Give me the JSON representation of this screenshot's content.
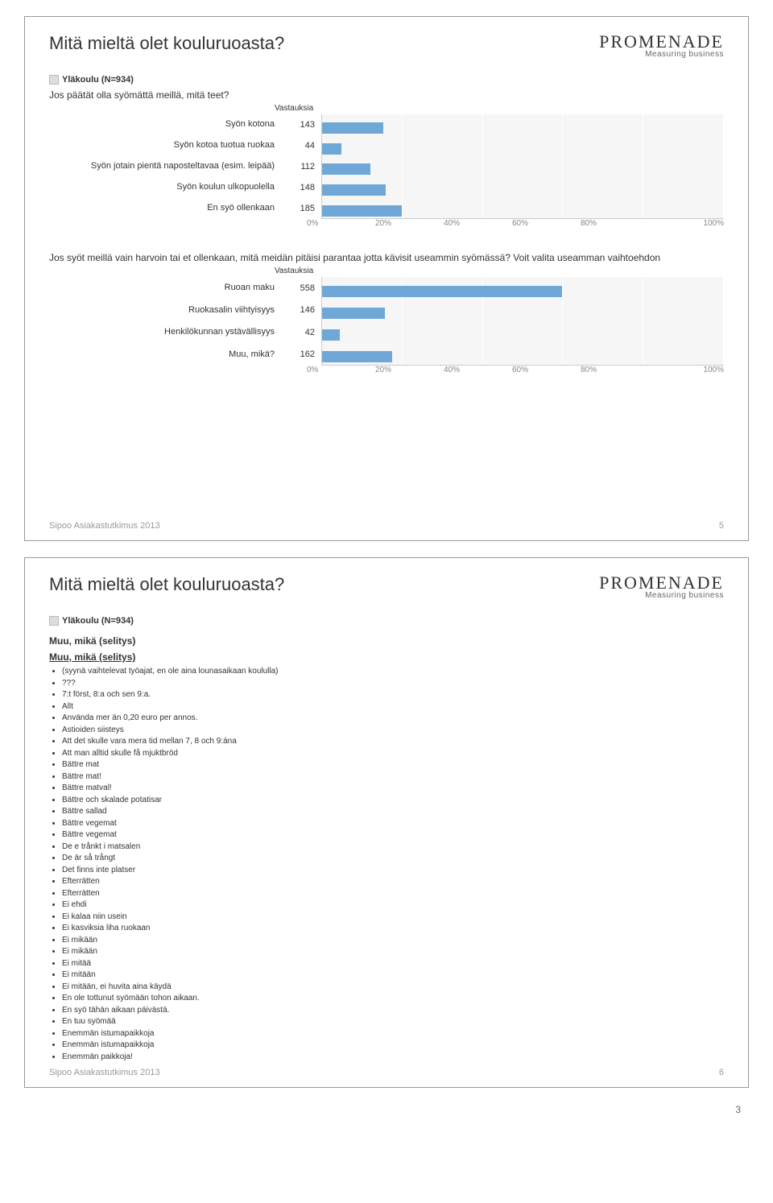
{
  "brand": {
    "name": "PROMENADE",
    "tagline": "Measuring business"
  },
  "filter": "Yläkoulu (N=934)",
  "footer": {
    "text": "Sipoo Asiakastutkimus 2013"
  },
  "pageNumber": "3",
  "slide1": {
    "title": "Mitä mieltä olet kouluruoasta?",
    "chart1": {
      "question": "Jos päätät olla syömättä meillä, mitä teet?",
      "countHeader": "Vastauksia",
      "total": 934,
      "bar_color": "#6fa8d6",
      "plot_bg": "#f6f6f6",
      "grid_color": "#ffffff",
      "axis_color": "#cccccc",
      "label_color": "#333333",
      "tick_label_color": "#888888",
      "ticks": [
        "0%",
        "20%",
        "40%",
        "60%",
        "80%",
        "100%"
      ],
      "rows": [
        {
          "label": "Syön kotona",
          "count": 143
        },
        {
          "label": "Syön kotoa tuotua ruokaa",
          "count": 44
        },
        {
          "label": "Syön jotain pientä naposteltavaa (esim. leipää)",
          "count": 112
        },
        {
          "label": "Syön koulun ulkopuolella",
          "count": 148
        },
        {
          "label": "En syö ollenkaan",
          "count": 185
        }
      ]
    },
    "chart2": {
      "question": "Jos syöt meillä vain harvoin tai et ollenkaan, mitä meidän pitäisi parantaa jotta kävisit useammin syömässä? Voit valita useamman vaihtoehdon",
      "countHeader": "Vastauksia",
      "total": 934,
      "bar_color": "#6fa8d6",
      "plot_bg": "#f6f6f6",
      "grid_color": "#ffffff",
      "axis_color": "#cccccc",
      "label_color": "#333333",
      "tick_label_color": "#888888",
      "ticks": [
        "0%",
        "20%",
        "40%",
        "60%",
        "80%",
        "100%"
      ],
      "rows": [
        {
          "label": "Ruoan maku",
          "count": 558
        },
        {
          "label": "Ruokasalin viihtyisyys",
          "count": 146
        },
        {
          "label": "Henkilökunnan ystävällisyys",
          "count": 42
        },
        {
          "label": "Muu, mikä?",
          "count": 162
        }
      ]
    },
    "pageNum": "5"
  },
  "slide2": {
    "title": "Mitä mieltä olet kouluruoasta?",
    "listTitle1": "Muu, mikä (selitys)",
    "listTitle2": "Muu, mikä (selitys)",
    "items": [
      "(syynä vaihtelevat työajat, en ole aina lounasaikaan koululla)",
      "???",
      "7:t först, 8:a och sen 9:a.",
      "Allt",
      "Använda mer än 0,20 euro per annos.",
      "Astioiden siisteys",
      "Att det skulle vara mera tid mellan 7, 8 och 9:ána",
      "Att man alltid skulle få mjuktbröd",
      "Bättre mat",
      "Bättre mat!",
      "Bättre matval!",
      "Bättre och skalade potatisar",
      "Bättre sallad",
      "Bättre vegemat",
      "Bättre vegemat",
      "De e trånkt i matsalen",
      "De är så trångt",
      "Det finns inte platser",
      "Efterrätten",
      "Efterrätten",
      "Ei ehdi",
      "Ei kalaa niin usein",
      "Ei kasviksia liha ruokaan",
      "Ei mikään",
      "Ei mikään",
      "Ei mitää",
      "Ei mitään",
      "Ei mitään, ei huvita aina käydä",
      "En ole tottunut syömään tohon aikaan.",
      "En syö tähän aikaan päivästä.",
      "En tuu syömää",
      "Enemmän istumapaikkoja",
      "Enemmän istumapaikkoja",
      "Enemmän paikkoja!"
    ],
    "pageNum": "6"
  }
}
